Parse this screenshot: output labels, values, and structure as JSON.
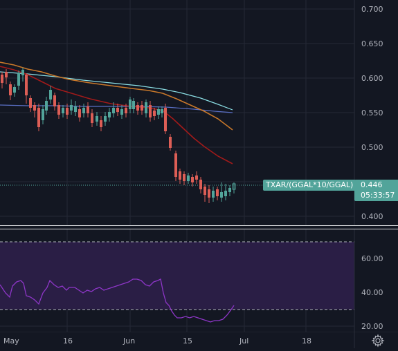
{
  "price_axis": {
    "ticks": [
      "0.700",
      "0.650",
      "0.600",
      "0.550",
      "0.500",
      "0.400"
    ]
  },
  "symbol_label": "TXAR/(GGAL*10/GGAL)",
  "last_price": "0.446",
  "countdown": "05:33:57",
  "rsi_axis": {
    "ticks": [
      "60.00",
      "40.00",
      "20.00"
    ]
  },
  "time_axis": {
    "ticks": [
      "May",
      "16",
      "Jun",
      "15",
      "Jul",
      "18"
    ]
  },
  "colors": {
    "background": "#131722",
    "up": "#52a49a",
    "down": "#dd5e56",
    "ma_cyan": "#8ce0e6",
    "ma_orange": "#c9782a",
    "ma_red": "#a21a1a",
    "ma_blue": "#5a6fc4",
    "rsi_line": "#8e36c8",
    "rsi_band": "#2a1e45"
  },
  "icons": {
    "settings": "gear-icon"
  }
}
